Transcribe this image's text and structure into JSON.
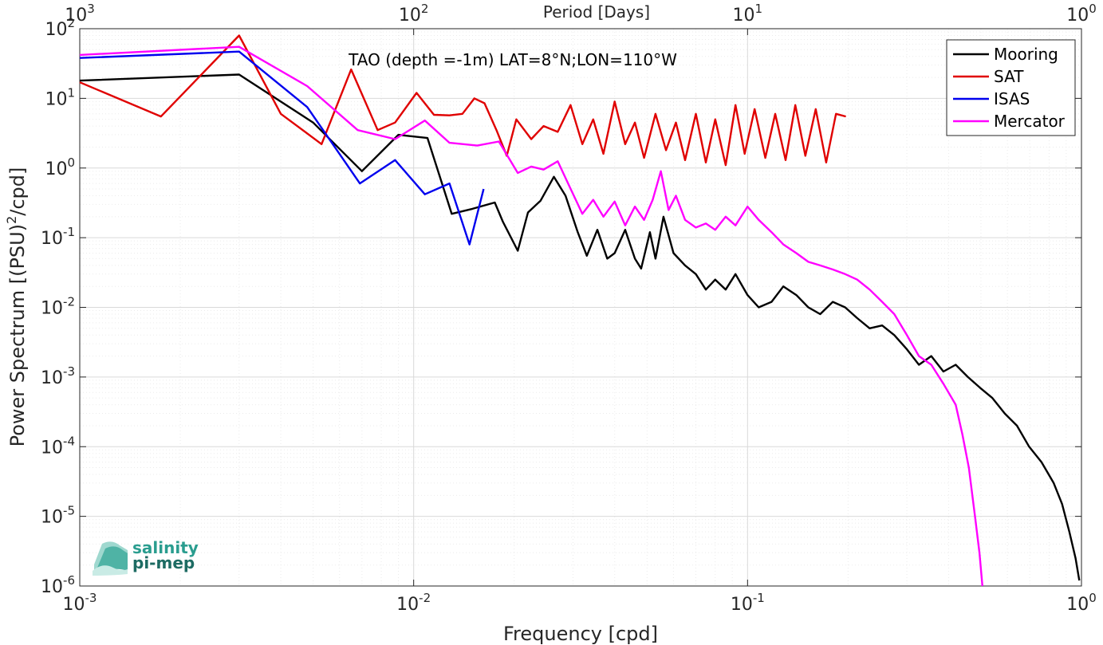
{
  "chart_data": {
    "type": "line",
    "title": "TAO (depth =-1m) LAT=8°N;LON=110°W",
    "xlabel": "Frequency [cpd]",
    "ylabel_main": "Power Spectrum [(PSU)",
    "ylabel_sup": "2",
    "ylabel_tail": "/cpd]",
    "top_xlabel": "Period [Days]",
    "x_scale": "log",
    "y_scale": "log",
    "xlim": [
      0.001,
      1
    ],
    "ylim": [
      1e-06,
      100
    ],
    "grid": true,
    "legend_position": "top-right",
    "x_ticks": [
      {
        "value": 0.001,
        "base": "10",
        "exp": "-3"
      },
      {
        "value": 0.01,
        "base": "10",
        "exp": "-2"
      },
      {
        "value": 0.1,
        "base": "10",
        "exp": "-1"
      },
      {
        "value": 1,
        "base": "10",
        "exp": "0"
      }
    ],
    "top_x_ticks": [
      {
        "value": 0.001,
        "base": "10",
        "exp": "3"
      },
      {
        "value": 0.01,
        "base": "10",
        "exp": "2"
      },
      {
        "value": 0.1,
        "base": "10",
        "exp": "1"
      },
      {
        "value": 1,
        "base": "10",
        "exp": "0"
      }
    ],
    "y_ticks": [
      {
        "value": 100,
        "base": "10",
        "exp": "2"
      },
      {
        "value": 10,
        "base": "10",
        "exp": "1"
      },
      {
        "value": 1,
        "base": "10",
        "exp": "0"
      },
      {
        "value": 0.1,
        "base": "10",
        "exp": "-1"
      },
      {
        "value": 0.01,
        "base": "10",
        "exp": "-2"
      },
      {
        "value": 0.001,
        "base": "10",
        "exp": "-3"
      },
      {
        "value": 0.0001,
        "base": "10",
        "exp": "-4"
      },
      {
        "value": 1e-05,
        "base": "10",
        "exp": "-5"
      },
      {
        "value": 1e-06,
        "base": "10",
        "exp": "-6"
      }
    ],
    "series": [
      {
        "name": "Mooring",
        "color": "#000000",
        "x": [
          0.001,
          0.003,
          0.005,
          0.007,
          0.009,
          0.011,
          0.013,
          0.015,
          0.0175,
          0.0185,
          0.0205,
          0.022,
          0.024,
          0.0263,
          0.0285,
          0.031,
          0.033,
          0.0355,
          0.038,
          0.04,
          0.043,
          0.046,
          0.048,
          0.051,
          0.053,
          0.056,
          0.06,
          0.065,
          0.07,
          0.075,
          0.08,
          0.086,
          0.092,
          0.1,
          0.108,
          0.118,
          0.128,
          0.14,
          0.152,
          0.165,
          0.18,
          0.196,
          0.213,
          0.232,
          0.253,
          0.275,
          0.3,
          0.326,
          0.355,
          0.386,
          0.42,
          0.457,
          0.497,
          0.541,
          0.589,
          0.641,
          0.697,
          0.759,
          0.826,
          0.875,
          0.92,
          0.96,
          0.985
        ],
        "values": [
          18,
          22,
          4.5,
          0.9,
          3.0,
          2.7,
          0.22,
          0.26,
          0.32,
          0.17,
          0.065,
          0.23,
          0.34,
          0.75,
          0.4,
          0.12,
          0.055,
          0.13,
          0.05,
          0.06,
          0.13,
          0.05,
          0.036,
          0.12,
          0.05,
          0.2,
          0.06,
          0.04,
          0.03,
          0.018,
          0.025,
          0.018,
          0.03,
          0.015,
          0.01,
          0.012,
          0.02,
          0.015,
          0.01,
          0.008,
          0.012,
          0.01,
          0.007,
          0.005,
          0.0055,
          0.004,
          0.0025,
          0.0015,
          0.002,
          0.0012,
          0.0015,
          0.001,
          0.0007,
          0.0005,
          0.0003,
          0.0002,
          0.0001,
          6e-05,
          3e-05,
          1.5e-05,
          6e-06,
          2.5e-06,
          1.2e-06
        ]
      },
      {
        "name": "SAT",
        "color": "#e00000",
        "x": [
          0.001,
          0.00175,
          0.003,
          0.004,
          0.0053,
          0.0065,
          0.0078,
          0.0088,
          0.0102,
          0.0115,
          0.0128,
          0.014,
          0.0152,
          0.0163,
          0.0177,
          0.019,
          0.0203,
          0.0225,
          0.0245,
          0.027,
          0.0295,
          0.032,
          0.0345,
          0.037,
          0.04,
          0.043,
          0.046,
          0.049,
          0.053,
          0.057,
          0.061,
          0.065,
          0.07,
          0.075,
          0.08,
          0.086,
          0.092,
          0.098,
          0.105,
          0.113,
          0.121,
          0.13,
          0.139,
          0.149,
          0.16,
          0.172,
          0.184,
          0.197
        ],
        "values": [
          17,
          5.5,
          80,
          6,
          2.2,
          26,
          3.5,
          4.5,
          12,
          5.8,
          5.7,
          6,
          10,
          8.5,
          3.5,
          1.5,
          5,
          2.6,
          4,
          3.3,
          8,
          2.2,
          5,
          1.6,
          9,
          2.2,
          4.5,
          1.4,
          6,
          1.8,
          4.5,
          1.3,
          6,
          1.2,
          5,
          1.1,
          8,
          1.6,
          7,
          1.4,
          6,
          1.3,
          8,
          1.5,
          7,
          1.2,
          6,
          5.5
        ]
      },
      {
        "name": "ISAS",
        "color": "#0000ee",
        "x": [
          0.001,
          0.003,
          0.0048,
          0.0069,
          0.0088,
          0.0108,
          0.0128,
          0.0147,
          0.0162
        ],
        "values": [
          38,
          47,
          7.5,
          0.6,
          1.3,
          0.42,
          0.6,
          0.08,
          0.5
        ]
      },
      {
        "name": "Mercator",
        "color": "#ff00ff",
        "x": [
          0.001,
          0.003,
          0.0048,
          0.0068,
          0.0088,
          0.0108,
          0.0128,
          0.0155,
          0.018,
          0.0205,
          0.0225,
          0.0245,
          0.027,
          0.029,
          0.032,
          0.0345,
          0.037,
          0.04,
          0.043,
          0.046,
          0.049,
          0.052,
          0.055,
          0.058,
          0.061,
          0.065,
          0.07,
          0.075,
          0.08,
          0.086,
          0.092,
          0.1,
          0.108,
          0.118,
          0.128,
          0.14,
          0.152,
          0.165,
          0.18,
          0.196,
          0.213,
          0.232,
          0.253,
          0.275,
          0.3,
          0.326,
          0.355,
          0.386,
          0.42,
          0.44,
          0.46,
          0.48,
          0.495,
          0.505
        ],
        "values": [
          42,
          55,
          15,
          3.5,
          2.6,
          4.8,
          2.3,
          2.1,
          2.4,
          0.85,
          1.05,
          0.95,
          1.25,
          0.6,
          0.22,
          0.35,
          0.2,
          0.33,
          0.15,
          0.28,
          0.18,
          0.35,
          0.9,
          0.25,
          0.4,
          0.18,
          0.14,
          0.16,
          0.13,
          0.2,
          0.15,
          0.28,
          0.18,
          0.12,
          0.08,
          0.06,
          0.045,
          0.04,
          0.035,
          0.03,
          0.025,
          0.018,
          0.012,
          0.008,
          0.004,
          0.002,
          0.0015,
          0.0008,
          0.0004,
          0.00015,
          5e-05,
          1e-05,
          3e-06,
          1e-06
        ]
      }
    ]
  },
  "logo": {
    "line1": "salinity",
    "line2": "pi-mep",
    "color_teal": "#2a9d8f",
    "color_dark": "#1d6b63"
  }
}
